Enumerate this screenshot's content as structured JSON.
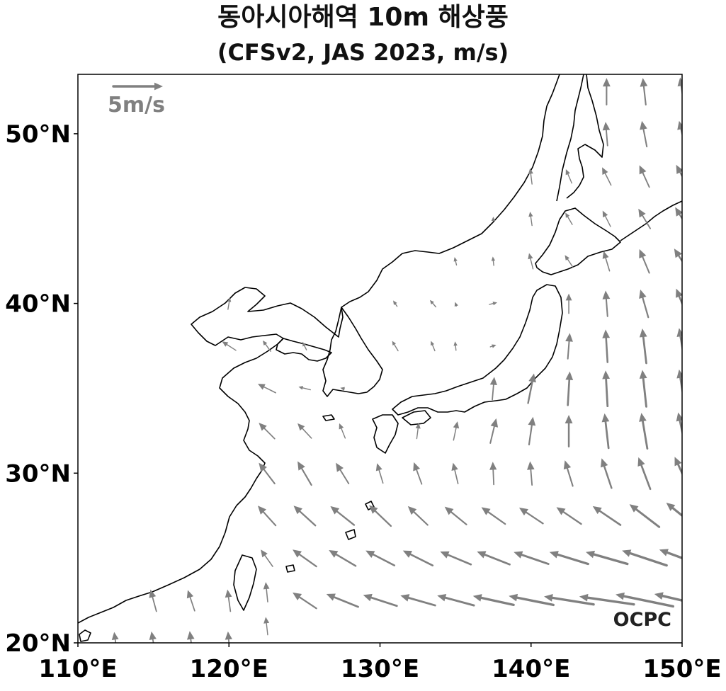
{
  "title": "동아시아해역 10m 해상풍",
  "subtitle": "(CFSv2, JAS 2023, m/s)",
  "reference_vector": {
    "label": "5m/s",
    "speed": 5
  },
  "watermark": "OCPC",
  "colors": {
    "arrow": "#808080",
    "coast": "#000000",
    "frame": "#000000"
  },
  "chart_data": {
    "type": "vector-map",
    "projection": "equirectangular",
    "lon_range": [
      110,
      150
    ],
    "lat_range": [
      20,
      53.5
    ],
    "x_ticks": [
      "110°E",
      "120°E",
      "130°E",
      "140°E",
      "150°E"
    ],
    "y_ticks": [
      "20°N",
      "30°N",
      "40°N",
      "50°N"
    ],
    "x_tick_values": [
      110,
      120,
      130,
      140,
      150
    ],
    "y_tick_values": [
      20,
      30,
      40,
      50
    ],
    "grid": false,
    "wind_vectors_lon_lat_u_v_ms": [
      [
        112.5,
        20,
        -0.3,
        2.2
      ],
      [
        115,
        20,
        -0.4,
        2.3
      ],
      [
        117.5,
        20,
        -0.3,
        2.4
      ],
      [
        120,
        20,
        -0.2,
        2.3
      ],
      [
        115,
        22.5,
        -0.6,
        2.2
      ],
      [
        117.5,
        22.5,
        -0.7,
        2.1
      ],
      [
        120,
        22.5,
        -0.3,
        2.2
      ],
      [
        125,
        22.5,
        -2.4,
        1.6
      ],
      [
        127.5,
        22.5,
        -3.2,
        1.3
      ],
      [
        130,
        22.5,
        -3.4,
        1.1
      ],
      [
        132.5,
        22.5,
        -3.5,
        1.0
      ],
      [
        135,
        22.5,
        -3.7,
        1.0
      ],
      [
        137.5,
        22.5,
        -4.1,
        0.9
      ],
      [
        140,
        22.5,
        -4.5,
        0.9
      ],
      [
        142.5,
        22.5,
        -5.0,
        0.8
      ],
      [
        145,
        22.5,
        -5.5,
        0.8
      ],
      [
        147.5,
        22.5,
        -5.8,
        1.2
      ],
      [
        150,
        22.5,
        -5.6,
        1.3
      ],
      [
        122.5,
        23,
        -0.2,
        2.0
      ],
      [
        122.5,
        21,
        -0.2,
        1.8
      ],
      [
        122.5,
        25,
        -1.2,
        1.7
      ],
      [
        125,
        25,
        -2.4,
        1.7
      ],
      [
        127.5,
        25,
        -2.7,
        1.6
      ],
      [
        130,
        25,
        -2.9,
        1.5
      ],
      [
        132.5,
        25,
        -3.0,
        1.5
      ],
      [
        135,
        25,
        -3.1,
        1.3
      ],
      [
        137.5,
        25,
        -3.3,
        1.3
      ],
      [
        140,
        25,
        -3.5,
        1.2
      ],
      [
        142.5,
        25,
        -3.9,
        1.2
      ],
      [
        145,
        25,
        -4.2,
        1.2
      ],
      [
        147.5,
        25,
        -4.5,
        1.5
      ],
      [
        150,
        25,
        -4.6,
        1.7
      ],
      [
        122.5,
        27.5,
        -1.8,
        2.0
      ],
      [
        125,
        27.5,
        -2.2,
        2.0
      ],
      [
        127.5,
        27.5,
        -2.4,
        1.9
      ],
      [
        130,
        27.5,
        -2.2,
        2.1
      ],
      [
        132.5,
        27.5,
        -2.0,
        1.9
      ],
      [
        135,
        27.5,
        -2.2,
        1.8
      ],
      [
        137.5,
        27.5,
        -2.4,
        1.7
      ],
      [
        140,
        27.5,
        -2.4,
        1.6
      ],
      [
        142.5,
        27.5,
        -2.5,
        1.7
      ],
      [
        145,
        27.5,
        -2.8,
        1.9
      ],
      [
        147.5,
        27.5,
        -3.0,
        2.3
      ],
      [
        150,
        27.5,
        -3.2,
        2.6
      ],
      [
        122.5,
        30,
        -1.6,
        2.1
      ],
      [
        125,
        30,
        -1.4,
        2.4
      ],
      [
        127.5,
        30,
        -1.3,
        2.1
      ],
      [
        130,
        30,
        -0.6,
        2.0
      ],
      [
        132.5,
        30,
        -0.8,
        2.2
      ],
      [
        135,
        30,
        -0.5,
        2.1
      ],
      [
        137.5,
        30,
        -0.1,
        2.3
      ],
      [
        140,
        30,
        -0.2,
        2.4
      ],
      [
        142.5,
        30,
        -0.8,
        2.6
      ],
      [
        145,
        30,
        -1.0,
        3.0
      ],
      [
        147.5,
        30,
        -1.2,
        3.2
      ],
      [
        150,
        30,
        -1.5,
        3.3
      ],
      [
        122.5,
        32.5,
        -1.6,
        1.6
      ],
      [
        125,
        32.5,
        -1.4,
        1.5
      ],
      [
        127.5,
        32.5,
        -0.6,
        1.5
      ],
      [
        132.5,
        32.5,
        0.2,
        1.6
      ],
      [
        135,
        32.5,
        0.4,
        1.9
      ],
      [
        137.5,
        32.5,
        0.6,
        2.5
      ],
      [
        140,
        32.5,
        0.4,
        2.8
      ],
      [
        142.5,
        32.5,
        0.0,
        3.2
      ],
      [
        145,
        32.5,
        -0.4,
        3.5
      ],
      [
        147.5,
        32.5,
        -0.6,
        3.6
      ],
      [
        150,
        32.5,
        -0.8,
        3.7
      ],
      [
        122.5,
        35,
        -1.8,
        0.9
      ],
      [
        125,
        35,
        -1.2,
        0.3
      ],
      [
        127.5,
        35,
        -0.4,
        0.1
      ],
      [
        137.5,
        35,
        0.2,
        2.3
      ],
      [
        140,
        35,
        0.6,
        3.0
      ],
      [
        142.5,
        35,
        0.2,
        3.4
      ],
      [
        145,
        35,
        -0.2,
        3.6
      ],
      [
        147.5,
        35,
        -0.4,
        3.7
      ],
      [
        150,
        35,
        -0.6,
        3.8
      ],
      [
        120,
        37.5,
        -1.4,
        0.9
      ],
      [
        122.5,
        37.5,
        -0.8,
        1.1
      ],
      [
        125,
        37.5,
        -0.4,
        0.8
      ],
      [
        131,
        37.5,
        -0.6,
        1.0
      ],
      [
        133.5,
        37.5,
        -0.4,
        1.0
      ],
      [
        135,
        37.5,
        -0.1,
        0.9
      ],
      [
        137.5,
        37.5,
        0.6,
        0.2
      ],
      [
        142.5,
        37.5,
        0.2,
        2.6
      ],
      [
        145,
        37.5,
        -0.2,
        3.3
      ],
      [
        147.5,
        37.5,
        -0.4,
        3.5
      ],
      [
        150,
        37.5,
        -0.6,
        3.6
      ],
      [
        120,
        40,
        0.2,
        1.2
      ],
      [
        131,
        40,
        -0.4,
        0.6
      ],
      [
        133.5,
        40,
        -0.6,
        0.7
      ],
      [
        135,
        40,
        -0.1,
        0.3
      ],
      [
        137.5,
        40,
        0.8,
        0.2
      ],
      [
        142.5,
        40,
        0.0,
        2.0
      ],
      [
        145,
        40,
        -0.2,
        2.6
      ],
      [
        147.5,
        40,
        -0.8,
        2.8
      ],
      [
        150,
        40,
        -1.2,
        3.0
      ],
      [
        135,
        42.5,
        -0.2,
        0.8
      ],
      [
        137.5,
        42.5,
        -0.1,
        0.9
      ],
      [
        140,
        42.5,
        -0.4,
        1.6
      ],
      [
        142.5,
        42.5,
        -0.8,
        1.2
      ],
      [
        145,
        42.5,
        -0.6,
        2.0
      ],
      [
        147.5,
        42.5,
        -1.0,
        2.4
      ],
      [
        150,
        42.5,
        -1.6,
        2.5
      ],
      [
        137.5,
        45,
        0.0,
        0.4
      ],
      [
        140,
        45,
        -0.2,
        1.4
      ],
      [
        142.5,
        45,
        -0.7,
        1.2
      ],
      [
        145,
        45,
        -0.8,
        1.6
      ],
      [
        147.5,
        45,
        -1.2,
        2.0
      ],
      [
        150,
        45,
        -1.4,
        2.3
      ],
      [
        140,
        47.5,
        -0.2,
        1.6
      ],
      [
        142.5,
        47.5,
        -0.6,
        1.4
      ],
      [
        145,
        47.5,
        -0.9,
        1.8
      ],
      [
        147.5,
        47.5,
        -1.0,
        2.2
      ],
      [
        150,
        47.5,
        -1.2,
        2.3
      ],
      [
        145,
        50,
        -0.2,
        2.4
      ],
      [
        147.5,
        50,
        -0.5,
        2.6
      ],
      [
        150,
        50,
        -0.6,
        2.6
      ],
      [
        145,
        52.5,
        0.0,
        2.7
      ],
      [
        147.5,
        52.5,
        -0.3,
        2.7
      ],
      [
        150,
        52.5,
        -0.4,
        2.8
      ]
    ]
  }
}
